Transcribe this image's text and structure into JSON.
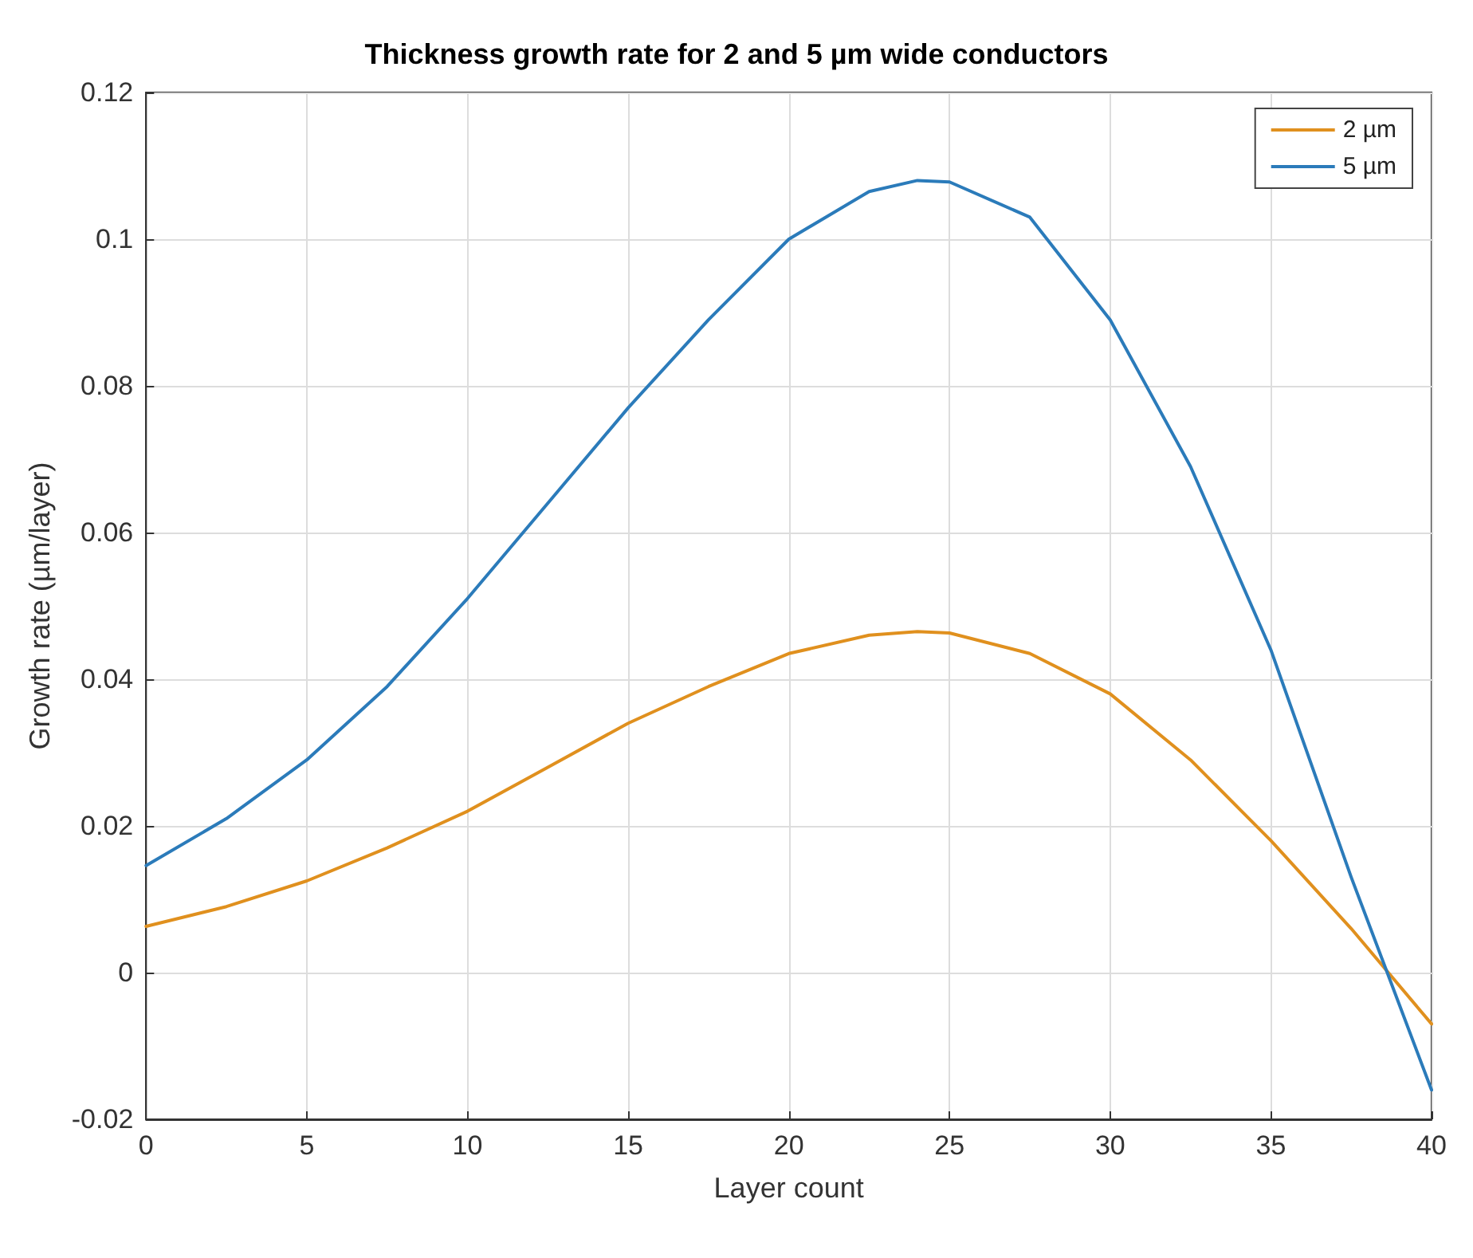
{
  "chart_data": {
    "type": "line",
    "title": "Thickness growth rate for 2 and 5 µm wide conductors",
    "xlabel": "Layer count",
    "ylabel": "Growth rate (µm/layer)",
    "x": [
      0,
      2.5,
      5,
      7.5,
      10,
      12.5,
      15,
      17.5,
      20,
      22.5,
      24,
      25,
      27.5,
      30,
      32.5,
      35,
      37.5,
      40
    ],
    "series": [
      {
        "name": "2 µm",
        "color": "#e0901e",
        "values": [
          0.0063,
          0.009,
          0.0125,
          0.017,
          0.022,
          0.028,
          0.034,
          0.039,
          0.0435,
          0.046,
          0.0465,
          0.0463,
          0.0435,
          0.038,
          0.029,
          0.018,
          0.006,
          -0.007
        ]
      },
      {
        "name": "5 µm",
        "color": "#2b7bba",
        "values": [
          0.0146,
          0.021,
          0.029,
          0.039,
          0.051,
          0.064,
          0.077,
          0.089,
          0.1,
          0.1065,
          0.108,
          0.1078,
          0.103,
          0.089,
          0.069,
          0.044,
          0.013,
          -0.016
        ]
      }
    ],
    "xlim": [
      0,
      40
    ],
    "xticks": [
      0,
      5,
      10,
      15,
      20,
      25,
      30,
      35,
      40
    ],
    "ylim": [
      -0.02,
      0.12
    ],
    "yticks": [
      -0.02,
      0,
      0.02,
      0.04,
      0.06,
      0.08,
      0.1,
      0.12
    ],
    "grid": true,
    "legend": "top right",
    "marker": "none",
    "line_style": "solid"
  }
}
